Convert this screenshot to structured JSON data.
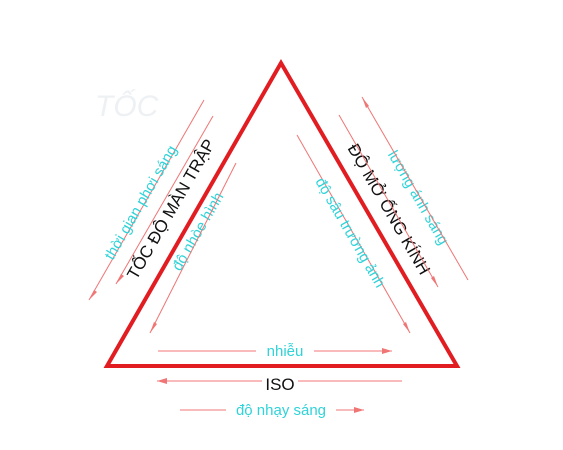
{
  "colors": {
    "triangle": "#e11d22",
    "arrow": "#f07575",
    "black_text": "#111111",
    "cyan_text": "#2fd3d8",
    "faint_text": "#eef1f3"
  },
  "watermark": {
    "text": "TỐC"
  },
  "left_side": {
    "label": "TỐC ĐỘ MÀN TRẬP",
    "outer_caption": "thời gian phơi sáng",
    "inner_caption": "độ nhòe hình"
  },
  "right_side": {
    "label": "ĐỘ MỞ ỐNG KÍNH",
    "outer_caption": "lượng ánh sáng",
    "inner_caption": "độ sâu trường ảnh"
  },
  "bottom_side": {
    "label": "ISO",
    "inner_caption": "nhiễu",
    "outer_caption": "độ nhạy sáng"
  }
}
